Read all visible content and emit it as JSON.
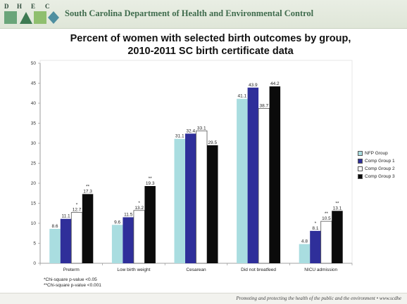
{
  "header": {
    "logo_letters": [
      "D",
      "H",
      "E",
      "C"
    ],
    "agency": "South Carolina Department of Health and Environmental Control"
  },
  "footer": {
    "tagline": "Promoting and protecting the health of the public and the environment  •  www.scdhe"
  },
  "footnotes": [
    "*Chi-square  p-value <0.05",
    "**Chi-square  p-value <0.001"
  ],
  "colors": {
    "nfp": "#a9dde0",
    "comp1": "#2f2f9a",
    "comp2": "#ffffff",
    "comp3": "#0b0b0b"
  },
  "chart_data": {
    "type": "bar",
    "title_lines": [
      "Percent of women with selected birth outcomes by group,",
      "2010-2011 SC birth certificate data"
    ],
    "categories": [
      "Preterm",
      "Low birth weight",
      "Cesarean",
      "Did not breatfeed",
      "NICU admission"
    ],
    "series": [
      {
        "name": "NFP Group",
        "values": [
          8.6,
          9.6,
          31.1,
          41.1,
          4.8
        ],
        "value_labels": [
          "8.6",
          "9.6",
          "31.1",
          "41.1",
          "4.8"
        ],
        "markers": [
          "",
          "",
          "",
          "",
          ""
        ]
      },
      {
        "name": "Comp Group 1",
        "values": [
          11.1,
          11.5,
          32.4,
          43.9,
          8.1
        ],
        "value_labels": [
          "11.1",
          "11.5",
          "32.4",
          "43.9",
          "8.1"
        ],
        "markers": [
          "",
          "",
          "",
          "",
          "*"
        ]
      },
      {
        "name": "Comp Group 2",
        "values": [
          12.7,
          13.2,
          33.1,
          38.7,
          10.5
        ],
        "value_labels": [
          "12.7",
          "13.2",
          "33.1",
          "38.7",
          "10.5"
        ],
        "markers": [
          "*",
          "*",
          "",
          "",
          "**"
        ]
      },
      {
        "name": "Comp Group 3",
        "values": [
          17.3,
          19.3,
          29.5,
          44.2,
          13.1
        ],
        "value_labels": [
          "17.3",
          "19.3",
          "29.5",
          "44.2",
          "13.1"
        ],
        "markers": [
          "**",
          "**",
          "",
          "",
          "**"
        ]
      }
    ],
    "ylim": [
      0,
      50
    ],
    "yticks": [
      0,
      5,
      10,
      15,
      20,
      25,
      30,
      35,
      40,
      45,
      50
    ],
    "grid": false,
    "legend_position": "right"
  }
}
